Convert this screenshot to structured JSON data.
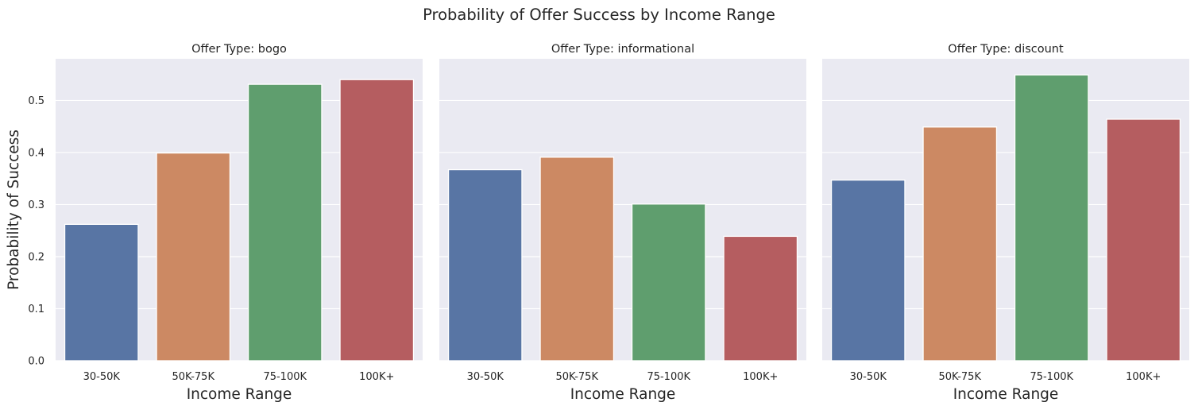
{
  "chart_data": {
    "type": "bar",
    "title": "Probability of Offer Success by Income Range",
    "ylabel": "Probability of Success",
    "xlabel": "Income Range",
    "ylim": [
      0,
      0.58
    ],
    "yticks": [
      "0.0",
      "0.1",
      "0.2",
      "0.3",
      "0.4",
      "0.5"
    ],
    "grid": true,
    "categories": [
      "30-50K",
      "50K-75K",
      "75-100K",
      "100K+"
    ],
    "colors": [
      "#5875a4",
      "#cc8963",
      "#5f9e6e",
      "#b55d60"
    ],
    "panels": [
      {
        "title": "Offer Type: bogo",
        "values": [
          0.262,
          0.399,
          0.531,
          0.54
        ]
      },
      {
        "title": "Offer Type: informational",
        "values": [
          0.367,
          0.391,
          0.301,
          0.239
        ]
      },
      {
        "title": "Offer Type: discount",
        "values": [
          0.347,
          0.449,
          0.549,
          0.464
        ]
      }
    ]
  }
}
